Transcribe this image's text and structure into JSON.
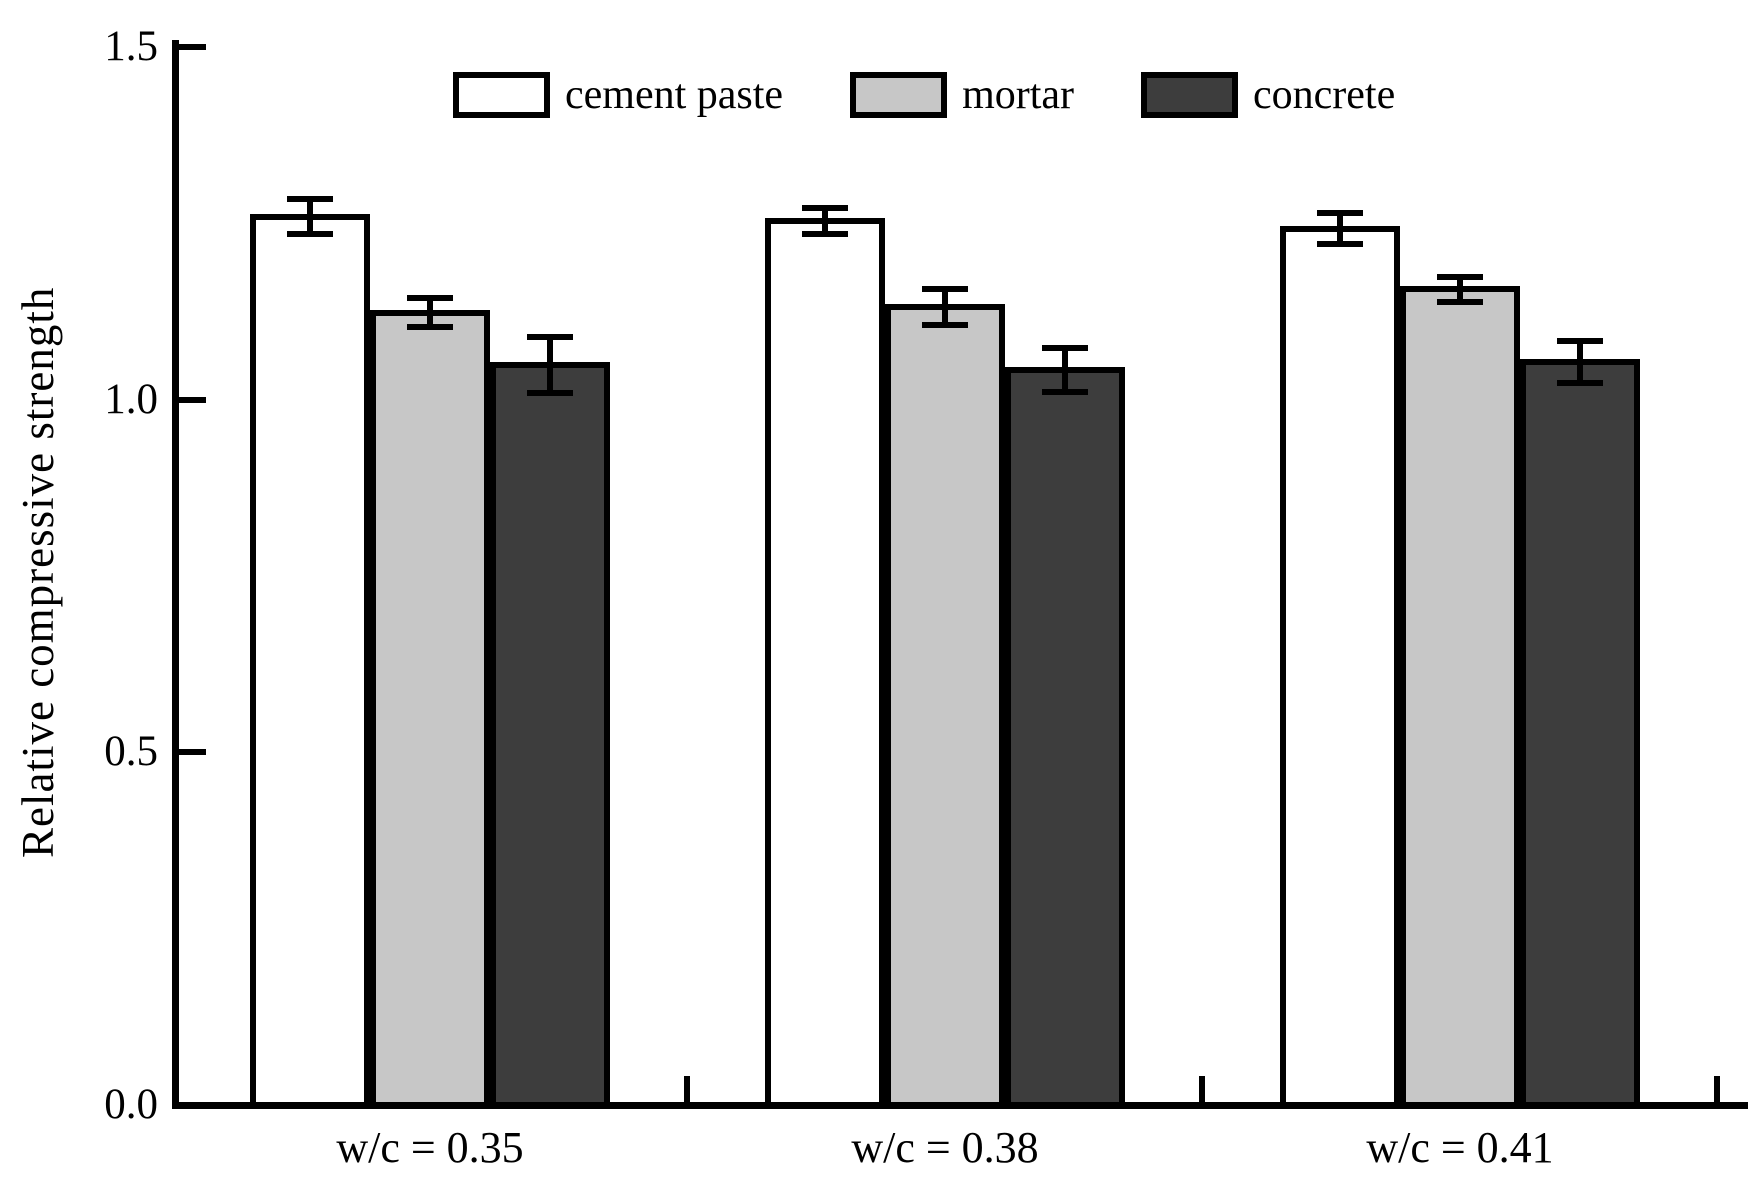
{
  "chart_data": {
    "type": "bar",
    "title": "",
    "xlabel": "",
    "ylabel": "Relative compressive strength",
    "categories": [
      "w/c = 0.35",
      "w/c = 0.38",
      "w/c = 0.41"
    ],
    "series": [
      {
        "name": "cement paste",
        "color": "#ffffff",
        "values": [
          1.26,
          1.254,
          1.243
        ],
        "errors": [
          0.025,
          0.019,
          0.022
        ]
      },
      {
        "name": "mortar",
        "color": "#c7c7c7",
        "values": [
          1.124,
          1.132,
          1.157
        ],
        "errors": [
          0.02,
          0.025,
          0.018
        ]
      },
      {
        "name": "concrete",
        "color": "#3d3d3d",
        "values": [
          1.05,
          1.043,
          1.054
        ],
        "errors": [
          0.04,
          0.031,
          0.03
        ]
      }
    ],
    "y_ticks": [
      0.0,
      0.5,
      1.0,
      1.5
    ],
    "y_tick_labels": [
      "0.0",
      "0.5",
      "1.0",
      "1.5"
    ],
    "ylim": [
      0.0,
      1.5
    ],
    "grid": false,
    "legend_position": "top-inside",
    "error_bars": true,
    "bar_edge_color": "#000000",
    "axis_color": "#000000"
  }
}
